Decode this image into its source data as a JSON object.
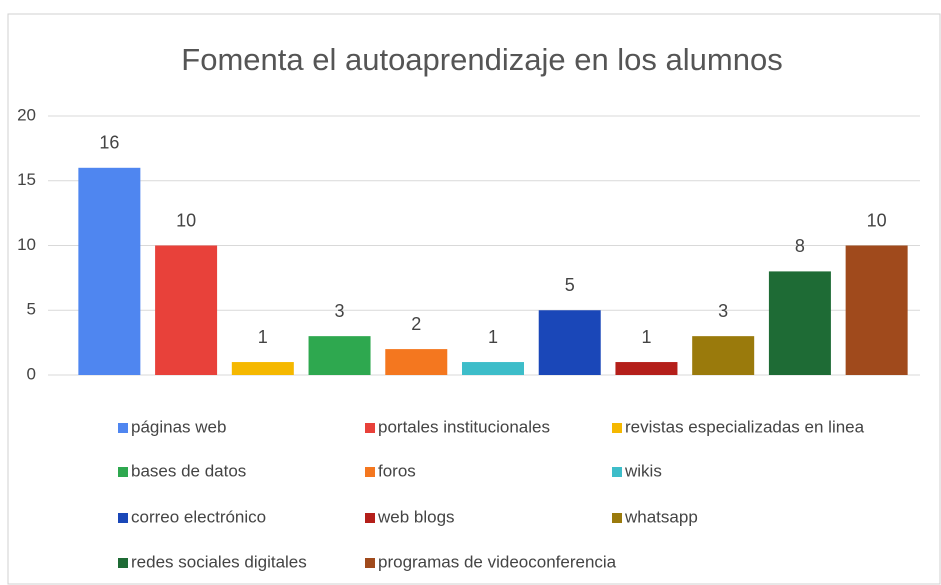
{
  "chart_data": {
    "type": "bar",
    "title": "Fomenta el autoaprendizaje  en los alumnos",
    "categories": [
      "páginas web",
      "portales institucionales",
      "revistas especializadas en linea",
      "bases de datos",
      "foros",
      "wikis",
      "correo electrónico",
      "web blogs",
      "whatsapp",
      "redes sociales digitales",
      "programas de videoconferencia"
    ],
    "values": [
      16,
      10,
      1,
      3,
      2,
      1,
      5,
      1,
      3,
      8,
      10
    ],
    "colors": [
      "#4f86f0",
      "#e8413a",
      "#f5b800",
      "#2ea84f",
      "#f4771f",
      "#3dbdc9",
      "#1a47b8",
      "#b41f1a",
      "#9a7a0c",
      "#1e6b35",
      "#a04a1c"
    ],
    "ylim": [
      0,
      20
    ],
    "yticks": [
      0,
      5,
      10,
      15,
      20
    ],
    "grid": true,
    "legend": "bottom"
  }
}
